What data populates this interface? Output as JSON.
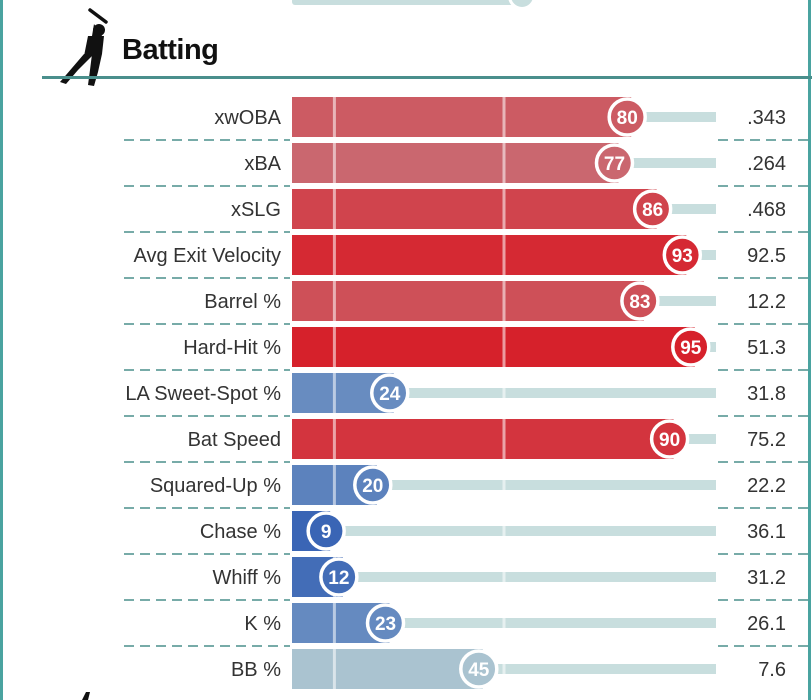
{
  "section": {
    "title": "Batting",
    "icon": "baseball-batter-icon"
  },
  "colors": {
    "accent": "#4aa3a0",
    "rule": "#4a8f8c",
    "track": "#c8dede",
    "high": "#d6212b",
    "low": "#3a65b5",
    "mid": "#b9d0d4"
  },
  "chart_data": {
    "type": "bar",
    "orientation": "horizontal",
    "title": "Batting",
    "xlim": [
      0,
      100
    ],
    "value_meaning": "percentile rank",
    "categories": [
      "xwOBA",
      "xBA",
      "xSLG",
      "Avg Exit Velocity",
      "Barrel %",
      "Hard-Hit %",
      "LA Sweet-Spot %",
      "Bat Speed",
      "Squared-Up %",
      "Chase %",
      "Whiff %",
      "K %",
      "BB %"
    ],
    "percentiles": [
      80,
      77,
      86,
      93,
      83,
      95,
      24,
      90,
      20,
      9,
      12,
      23,
      45
    ],
    "stat_values": [
      ".343",
      ".264",
      ".468",
      "92.5",
      "12.2",
      "51.3",
      "31.8",
      "75.2",
      "22.2",
      "36.1",
      "31.2",
      "26.1",
      "7.6"
    ],
    "reference_lines": [
      10,
      50
    ]
  }
}
